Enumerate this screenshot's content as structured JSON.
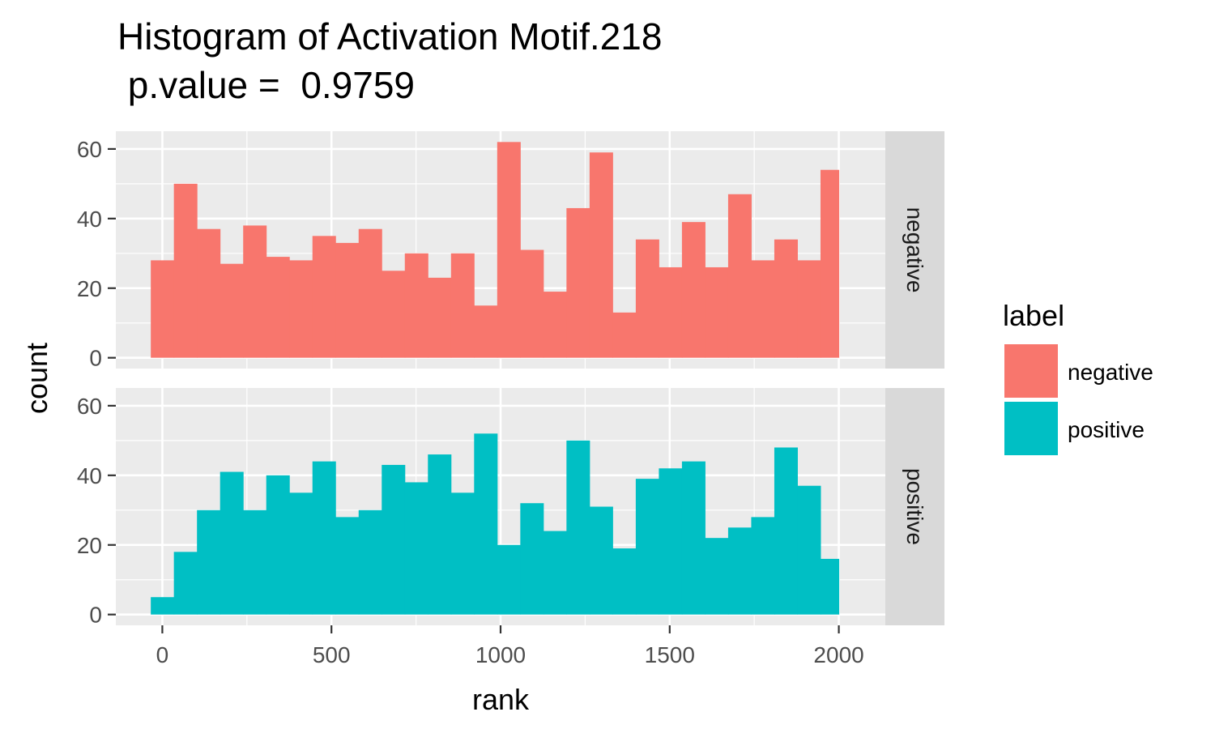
{
  "chart_data": {
    "type": "bar",
    "title": "Histogram of Activation Motif.218",
    "subtitle": " p.value =  0.9759",
    "xlabel": "rank",
    "ylabel": "count",
    "xlim": [
      -137.5,
      2137.5
    ],
    "ylim": [
      -3.1,
      65.1
    ],
    "x_ticks": [
      0,
      500,
      1000,
      1500,
      2000
    ],
    "x_tick_labels": [
      "0",
      "500",
      "1000",
      "1500",
      "2000"
    ],
    "y_ticks": [
      0,
      20,
      40,
      60
    ],
    "y_tick_labels": [
      "0",
      "20",
      "40",
      "60"
    ],
    "bin_width": 68.28,
    "bin_centers": [
      -0.0,
      68.28,
      136.55,
      204.83,
      273.1,
      341.38,
      409.66,
      477.93,
      546.21,
      614.48,
      682.76,
      751.03,
      819.31,
      887.59,
      955.86,
      1024.14,
      1092.41,
      1160.69,
      1228.97,
      1297.24,
      1365.52,
      1433.79,
      1502.07,
      1570.34,
      1638.62,
      1706.9,
      1775.17,
      1843.45,
      1911.72,
      2000.0
    ],
    "grid": true,
    "legend": {
      "title": "label",
      "placement": "right"
    },
    "facets": [
      {
        "strip_label": "negative",
        "name": "negative",
        "color": "#F8766D",
        "values": [
          28,
          50,
          37,
          27,
          38,
          29,
          28,
          35,
          33,
          37,
          25,
          30,
          23,
          30,
          15,
          62,
          31,
          19,
          43,
          59,
          13,
          34,
          26,
          39,
          26,
          47,
          28,
          34,
          28,
          54
        ]
      },
      {
        "strip_label": "positive",
        "name": "positive",
        "color": "#00BFC4",
        "values": [
          5,
          18,
          30,
          41,
          30,
          40,
          35,
          44,
          28,
          30,
          43,
          38,
          46,
          35,
          52,
          20,
          32,
          24,
          50,
          31,
          19,
          39,
          42,
          44,
          22,
          25,
          28,
          48,
          37,
          16
        ]
      }
    ]
  }
}
